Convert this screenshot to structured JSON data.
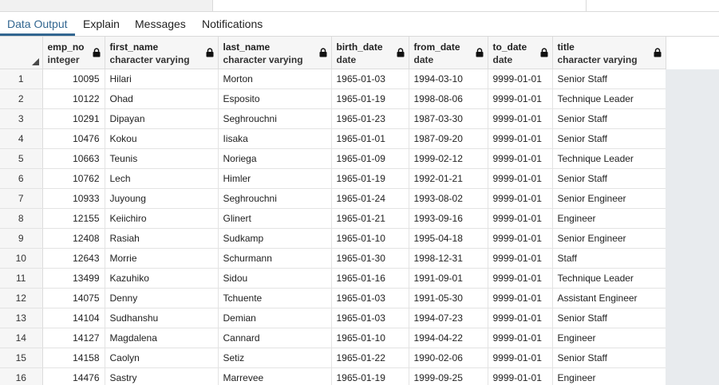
{
  "tabs": [
    {
      "label": "Data Output",
      "active": true
    },
    {
      "label": "Explain",
      "active": false
    },
    {
      "label": "Messages",
      "active": false
    },
    {
      "label": "Notifications",
      "active": false
    }
  ],
  "columns": [
    {
      "name": "emp_no",
      "type": "integer",
      "align": "right"
    },
    {
      "name": "first_name",
      "type": "character varying",
      "align": "left"
    },
    {
      "name": "last_name",
      "type": "character varying",
      "align": "left"
    },
    {
      "name": "birth_date",
      "type": "date",
      "align": "left"
    },
    {
      "name": "from_date",
      "type": "date",
      "align": "left"
    },
    {
      "name": "to_date",
      "type": "date",
      "align": "left"
    },
    {
      "name": "title",
      "type": "character varying",
      "align": "left"
    }
  ],
  "rows": [
    [
      "1",
      "10095",
      "Hilari",
      "Morton",
      "1965-01-03",
      "1994-03-10",
      "9999-01-01",
      "Senior Staff"
    ],
    [
      "2",
      "10122",
      "Ohad",
      "Esposito",
      "1965-01-19",
      "1998-08-06",
      "9999-01-01",
      "Technique Leader"
    ],
    [
      "3",
      "10291",
      "Dipayan",
      "Seghrouchni",
      "1965-01-23",
      "1987-03-30",
      "9999-01-01",
      "Senior Staff"
    ],
    [
      "4",
      "10476",
      "Kokou",
      "Iisaka",
      "1965-01-01",
      "1987-09-20",
      "9999-01-01",
      "Senior Staff"
    ],
    [
      "5",
      "10663",
      "Teunis",
      "Noriega",
      "1965-01-09",
      "1999-02-12",
      "9999-01-01",
      "Technique Leader"
    ],
    [
      "6",
      "10762",
      "Lech",
      "Himler",
      "1965-01-19",
      "1992-01-21",
      "9999-01-01",
      "Senior Staff"
    ],
    [
      "7",
      "10933",
      "Juyoung",
      "Seghrouchni",
      "1965-01-24",
      "1993-08-02",
      "9999-01-01",
      "Senior Engineer"
    ],
    [
      "8",
      "12155",
      "Keiichiro",
      "Glinert",
      "1965-01-21",
      "1993-09-16",
      "9999-01-01",
      "Engineer"
    ],
    [
      "9",
      "12408",
      "Rasiah",
      "Sudkamp",
      "1965-01-10",
      "1995-04-18",
      "9999-01-01",
      "Senior Engineer"
    ],
    [
      "10",
      "12643",
      "Morrie",
      "Schurmann",
      "1965-01-30",
      "1998-12-31",
      "9999-01-01",
      "Staff"
    ],
    [
      "11",
      "13499",
      "Kazuhiko",
      "Sidou",
      "1965-01-16",
      "1991-09-01",
      "9999-01-01",
      "Technique Leader"
    ],
    [
      "12",
      "14075",
      "Denny",
      "Tchuente",
      "1965-01-03",
      "1991-05-30",
      "9999-01-01",
      "Assistant Engineer"
    ],
    [
      "13",
      "14104",
      "Sudhanshu",
      "Demian",
      "1965-01-03",
      "1994-07-23",
      "9999-01-01",
      "Senior Staff"
    ],
    [
      "14",
      "14127",
      "Magdalena",
      "Cannard",
      "1965-01-10",
      "1994-04-22",
      "9999-01-01",
      "Engineer"
    ],
    [
      "15",
      "14158",
      "Caolyn",
      "Setiz",
      "1965-01-22",
      "1990-02-06",
      "9999-01-01",
      "Senior Staff"
    ],
    [
      "16",
      "14476",
      "Sastry",
      "Marrevee",
      "1965-01-19",
      "1999-09-25",
      "9999-01-01",
      "Engineer"
    ]
  ],
  "icons": {
    "column_lock": "lock-icon",
    "select_all_corner": "select-all-icon"
  },
  "colors": {
    "accent": "#326690",
    "header_bg": "#f6f6f6",
    "filler_bg": "#e8ebee"
  }
}
